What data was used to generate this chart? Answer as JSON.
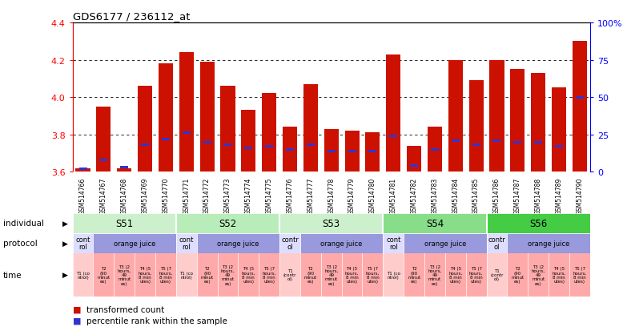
{
  "title": "GDS6177 / 236112_at",
  "samples": [
    "GSM514766",
    "GSM514767",
    "GSM514768",
    "GSM514769",
    "GSM514770",
    "GSM514771",
    "GSM514772",
    "GSM514773",
    "GSM514774",
    "GSM514775",
    "GSM514776",
    "GSM514777",
    "GSM514778",
    "GSM514779",
    "GSM514780",
    "GSM514781",
    "GSM514782",
    "GSM514783",
    "GSM514784",
    "GSM514785",
    "GSM514786",
    "GSM514787",
    "GSM514788",
    "GSM514789",
    "GSM514790"
  ],
  "red_values": [
    3.62,
    3.95,
    3.62,
    4.06,
    4.18,
    4.24,
    4.19,
    4.06,
    3.93,
    4.02,
    3.84,
    4.07,
    3.83,
    3.82,
    3.81,
    4.23,
    3.74,
    3.84,
    4.2,
    4.09,
    4.2,
    4.15,
    4.13,
    4.05,
    4.3
  ],
  "blue_pct": [
    2,
    8,
    3,
    18,
    22,
    26,
    20,
    18,
    16,
    17,
    15,
    18,
    14,
    14,
    14,
    24,
    4,
    15,
    21,
    18,
    21,
    20,
    20,
    17,
    50
  ],
  "ylim": [
    3.6,
    4.4
  ],
  "yticks_left": [
    3.6,
    3.8,
    4.0,
    4.2,
    4.4
  ],
  "yticks_right_pct": [
    0,
    25,
    50,
    75,
    100
  ],
  "ytick_labels_right": [
    "0",
    "25",
    "50",
    "75",
    "100%"
  ],
  "bar_color": "#cc1100",
  "blue_color": "#3333cc",
  "bar_width": 0.7,
  "groups": [
    {
      "label": "S51",
      "start": 0,
      "end": 4,
      "color": "#ccf0cc"
    },
    {
      "label": "S52",
      "start": 5,
      "end": 9,
      "color": "#b8ecb8"
    },
    {
      "label": "S53",
      "start": 10,
      "end": 14,
      "color": "#ccf0cc"
    },
    {
      "label": "S54",
      "start": 15,
      "end": 19,
      "color": "#88dd88"
    },
    {
      "label": "S56",
      "start": 20,
      "end": 24,
      "color": "#44cc44"
    }
  ],
  "protocol_groups": [
    {
      "label": "cont\nrol",
      "start": 0,
      "end": 0,
      "color": "#ddddff"
    },
    {
      "label": "orange juice",
      "start": 1,
      "end": 4,
      "color": "#9999dd"
    },
    {
      "label": "cont\nrol",
      "start": 5,
      "end": 5,
      "color": "#ddddff"
    },
    {
      "label": "orange juice",
      "start": 6,
      "end": 9,
      "color": "#9999dd"
    },
    {
      "label": "contr\nol",
      "start": 10,
      "end": 10,
      "color": "#ddddff"
    },
    {
      "label": "orange juice",
      "start": 11,
      "end": 14,
      "color": "#9999dd"
    },
    {
      "label": "cont\nrol",
      "start": 15,
      "end": 15,
      "color": "#ddddff"
    },
    {
      "label": "orange juice",
      "start": 16,
      "end": 19,
      "color": "#9999dd"
    },
    {
      "label": "contr\nol",
      "start": 20,
      "end": 20,
      "color": "#ddddff"
    },
    {
      "label": "orange juice",
      "start": 21,
      "end": 24,
      "color": "#9999dd"
    }
  ],
  "time_texts": [
    "T1 (co\nntrol)",
    "T2\n(90\nminut\nes)",
    "T3 (2\nhours,\n49\nminut\nes)",
    "T4 (5\nhours,\n8 min\nutes)",
    "T5 (7\nhours,\n8 min\nutes)",
    "T1 (co\nntrol)",
    "T2\n(90\nminut\nes)",
    "T3 (2\nhours,\n49\nminut\nes)",
    "T4 (5\nhours,\n8 min\nutes)",
    "T5 (7\nhours,\n8 min\nutes)",
    "T1\n(contr\nol)",
    "T2\n(90\nminut\nes)",
    "T3 (2\nhours,\n49\nminut\nes)",
    "T4 (5\nhours,\n8 min\nutes)",
    "T5 (7\nhours,\n8 min\nutes)",
    "T1 (co\nntrol)",
    "T2\n(90\nminut\nes)",
    "T3 (2\nhours,\n49\nminut\nes)",
    "T4 (5\nhours,\n8 min\nutes)",
    "T5 (7\nhours,\n8 min\nutes)",
    "T1\n(contr\nol)",
    "T2\n(90\nminut\nes)",
    "T3 (2\nhours,\n49\nminut\nes)",
    "T4 (5\nhours,\n8 min\nutes)",
    "T5 (7\nhours,\n8 min\nutes)"
  ],
  "ctrl_indices": [
    0,
    5,
    10,
    15,
    20
  ],
  "ctrl_bg": "#ffcccc",
  "oj_bg": "#ffaaaa",
  "legend_items": [
    {
      "color": "#cc1100",
      "label": "transformed count"
    },
    {
      "color": "#3333cc",
      "label": "percentile rank within the sample"
    }
  ]
}
